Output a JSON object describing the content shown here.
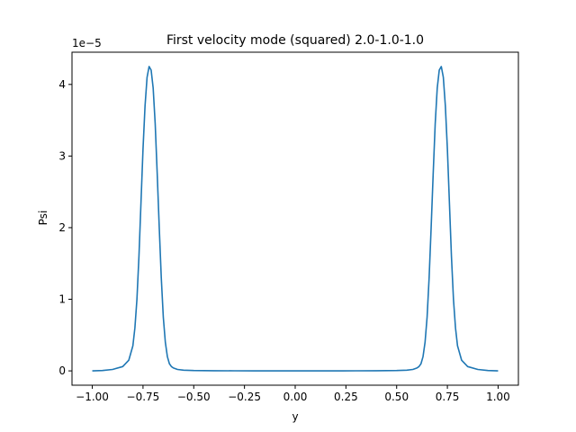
{
  "chart_data": {
    "type": "line",
    "title": "First velocity mode (squared) 2.0-1.0-1.0",
    "xlabel": "y",
    "ylabel": "Psi",
    "y_offset_label": "1e−5",
    "xlim": [
      -1.1,
      1.1
    ],
    "ylim": [
      -0.2,
      4.45
    ],
    "x_ticks": [
      -1.0,
      -0.75,
      -0.5,
      -0.25,
      0.0,
      0.25,
      0.5,
      0.75,
      1.0
    ],
    "x_tick_labels": [
      "−1.00",
      "−0.75",
      "−0.50",
      "−0.25",
      "0.00",
      "0.25",
      "0.50",
      "0.75",
      "1.00"
    ],
    "y_ticks": [
      0,
      1,
      2,
      3,
      4
    ],
    "y_tick_labels": [
      "0",
      "1",
      "2",
      "3",
      "4"
    ],
    "grid": false,
    "legend": "none",
    "series": [
      {
        "color": "#1f77b4",
        "x": [
          -1.0,
          -0.95,
          -0.9,
          -0.85,
          -0.82,
          -0.8,
          -0.79,
          -0.78,
          -0.77,
          -0.76,
          -0.75,
          -0.74,
          -0.73,
          -0.72,
          -0.71,
          -0.7,
          -0.69,
          -0.68,
          -0.67,
          -0.66,
          -0.65,
          -0.64,
          -0.63,
          -0.62,
          -0.61,
          -0.6,
          -0.58,
          -0.55,
          -0.5,
          -0.4,
          -0.3,
          -0.2,
          -0.1,
          0.0,
          0.1,
          0.2,
          0.3,
          0.4,
          0.5,
          0.55,
          0.58,
          0.6,
          0.61,
          0.62,
          0.63,
          0.64,
          0.65,
          0.66,
          0.67,
          0.68,
          0.69,
          0.7,
          0.71,
          0.72,
          0.73,
          0.74,
          0.75,
          0.76,
          0.77,
          0.78,
          0.79,
          0.8,
          0.82,
          0.85,
          0.9,
          0.95,
          1.0
        ],
        "y": [
          0.0,
          0.005,
          0.02,
          0.06,
          0.15,
          0.35,
          0.6,
          1.0,
          1.6,
          2.35,
          3.1,
          3.7,
          4.1,
          4.25,
          4.2,
          3.95,
          3.45,
          2.75,
          2.0,
          1.3,
          0.75,
          0.4,
          0.2,
          0.1,
          0.06,
          0.04,
          0.02,
          0.01,
          0.005,
          0.002,
          0.001,
          0.0005,
          0.0002,
          0.0,
          0.0002,
          0.0005,
          0.001,
          0.002,
          0.005,
          0.01,
          0.02,
          0.04,
          0.06,
          0.1,
          0.2,
          0.4,
          0.75,
          1.3,
          2.0,
          2.75,
          3.45,
          3.95,
          4.2,
          4.25,
          4.1,
          3.7,
          3.1,
          2.35,
          1.6,
          1.0,
          0.6,
          0.35,
          0.15,
          0.06,
          0.02,
          0.005,
          0.0
        ]
      }
    ]
  }
}
